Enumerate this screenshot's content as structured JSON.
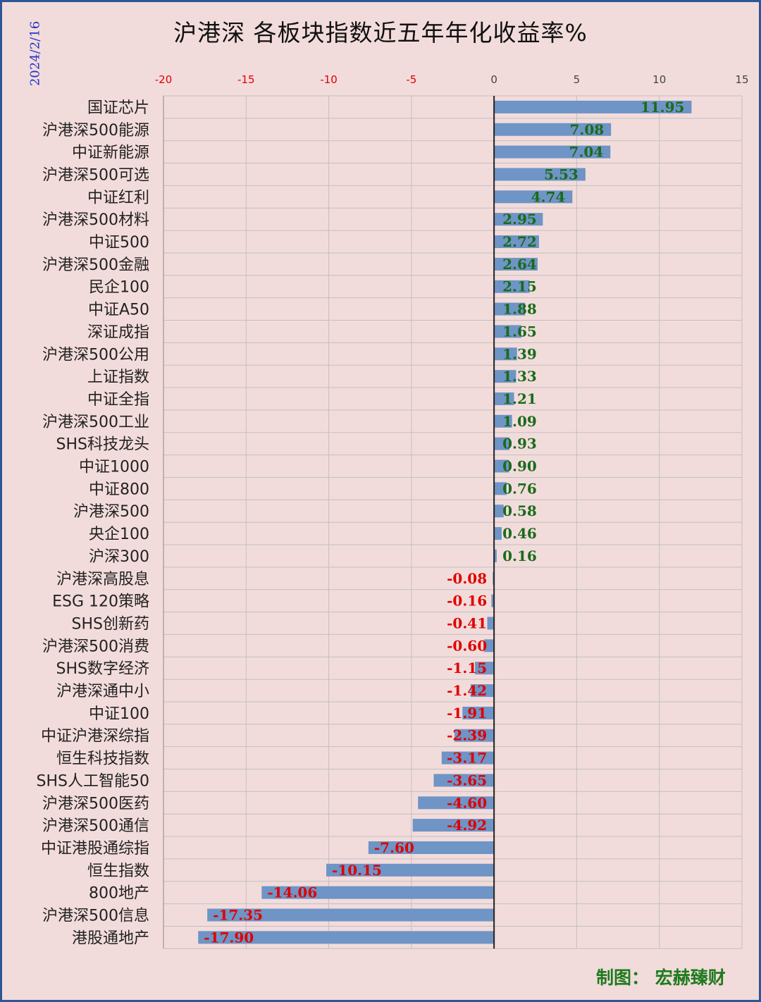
{
  "title": "沪港深 各板块指数近五年年化收益率%",
  "date": "2024/2/16",
  "credit": "制图：  宏赫臻财",
  "colors": {
    "background": "#f2dcdb",
    "border": "#2e5597",
    "bar": "#6f94c6",
    "grid": "#c0c0c0",
    "positive_label": "#1a6b1a",
    "negative_label": "#e00000",
    "tick_label": "#e00000"
  },
  "chart_data": {
    "type": "bar",
    "orientation": "horizontal",
    "title": "沪港深 各板块指数近五年年化收益率%",
    "xlim": [
      -20,
      15
    ],
    "xticks": [
      "-20",
      "-15",
      "-10",
      "-5",
      "0",
      "5",
      "10",
      "15"
    ],
    "grid": true,
    "categories": [
      "国证芯片",
      "沪港深500能源",
      "中证新能源",
      "沪港深500可选",
      "中证红利",
      "沪港深500材料",
      "中证500",
      "沪港深500金融",
      "民企100",
      "中证A50",
      "深证成指",
      "沪港深500公用",
      "上证指数",
      "中证全指",
      "沪港深500工业",
      "SHS科技龙头",
      "中证1000",
      "中证800",
      "沪港深500",
      "央企100",
      "沪深300",
      "沪港深高股息",
      "ESG 120策略",
      "SHS创新药",
      "沪港深500消费",
      "SHS数字经济",
      "沪港深通中小",
      "中证100",
      "中证沪港深综指",
      "恒生科技指数",
      "SHS人工智能50",
      "沪港深500医药",
      "沪港深500通信",
      "中证港股通综指",
      "恒生指数",
      "800地产",
      "沪港深500信息",
      "港股通地产"
    ],
    "values": [
      11.95,
      7.08,
      7.04,
      5.53,
      4.74,
      2.95,
      2.72,
      2.64,
      2.15,
      1.88,
      1.65,
      1.39,
      1.33,
      1.21,
      1.09,
      0.93,
      0.9,
      0.76,
      0.58,
      0.46,
      0.16,
      -0.08,
      -0.16,
      -0.41,
      -0.6,
      -1.15,
      -1.42,
      -1.91,
      -2.39,
      -3.17,
      -3.65,
      -4.6,
      -4.92,
      -7.6,
      -10.15,
      -14.06,
      -17.35,
      -17.9
    ],
    "labels": [
      "11.95",
      "7.08",
      "7.04",
      "5.53",
      "4.74",
      "2.95",
      "2.72",
      "2.64",
      "2.15",
      "1.88",
      "1.65",
      "1.39",
      "1.33",
      "1.21",
      "1.09",
      "0.93",
      "0.90",
      "0.76",
      "0.58",
      "0.46",
      "0.16",
      "-0.08",
      "-0.16",
      "-0.41",
      "-0.60",
      "-1.15",
      "-1.42",
      "-1.91",
      "-2.39",
      "-3.17",
      "-3.65",
      "-4.60",
      "-4.92",
      "-7.60",
      "-10.15",
      "-14.06",
      "-17.35",
      "-17.90"
    ]
  }
}
